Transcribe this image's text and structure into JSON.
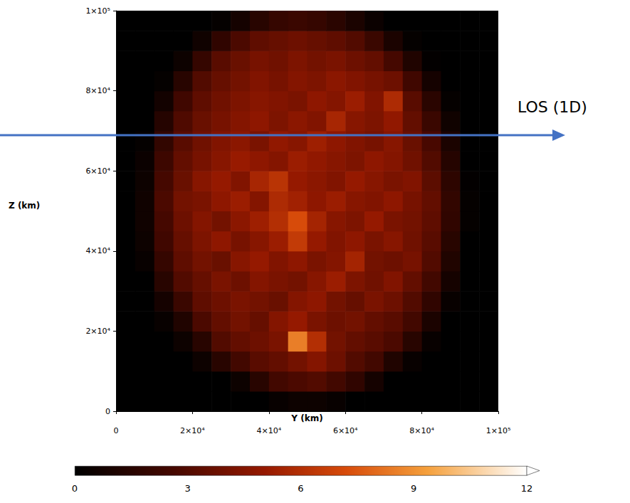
{
  "chart_data": {
    "type": "heatmap",
    "x_label": "Y (km)",
    "y_label": "Z (km)",
    "xlim": [
      0,
      100000
    ],
    "ylim": [
      0,
      100000
    ],
    "xticks": [
      0,
      {
        "value": 20000,
        "label": "2×10⁴"
      },
      {
        "value": 40000,
        "label": "4×10⁴"
      },
      {
        "value": 60000,
        "label": "6×10⁴"
      },
      {
        "value": 80000,
        "label": "8×10⁴"
      },
      {
        "value": 100000,
        "label": "1×10⁵"
      }
    ],
    "yticks": [
      0,
      {
        "value": 20000,
        "label": "2×10⁴"
      },
      {
        "value": 40000,
        "label": "4×10⁴"
      },
      {
        "value": 60000,
        "label": "6×10⁴"
      },
      {
        "value": 80000,
        "label": "8×10⁴"
      },
      {
        "value": 100000,
        "label": "1×10⁵"
      }
    ],
    "grid": false,
    "cells": {
      "x_bins": [
        0,
        5000,
        10000,
        15000,
        20000,
        25000,
        30000,
        35000,
        40000,
        45000,
        50000,
        55000,
        60000,
        65000,
        70000,
        75000,
        80000,
        85000,
        90000,
        95000,
        100000
      ],
      "y_bins": [
        0,
        5000,
        10000,
        15000,
        20000,
        25000,
        30000,
        35000,
        40000,
        45000,
        50000,
        55000,
        60000,
        65000,
        70000,
        75000,
        80000,
        85000,
        90000,
        95000,
        100000
      ],
      "values": [
        [
          0,
          0,
          0,
          0,
          0,
          0,
          0,
          0,
          0.3,
          0.5,
          0.5,
          0.3,
          0,
          0,
          0,
          0,
          0,
          0,
          0,
          0
        ],
        [
          0,
          0,
          0,
          0,
          0,
          0,
          0.5,
          1.5,
          2.5,
          2.8,
          3,
          2.5,
          1.8,
          0.8,
          0,
          0,
          0,
          0,
          0,
          0
        ],
        [
          0,
          0,
          0,
          0,
          0.5,
          1.5,
          2.5,
          3.2,
          3.5,
          4,
          4.5,
          3.8,
          3,
          2.5,
          1.2,
          0.3,
          0,
          0,
          0,
          0
        ],
        [
          0,
          0,
          0,
          0.5,
          1.5,
          3,
          3.5,
          3.8,
          4.2,
          8.5,
          6,
          4,
          3.5,
          3.2,
          2.8,
          1.5,
          0.3,
          0,
          0,
          0
        ],
        [
          0,
          0,
          0.3,
          1.2,
          2.8,
          3.5,
          4,
          3.6,
          4.5,
          5,
          4.2,
          3.8,
          4,
          3.5,
          3.2,
          2.5,
          1,
          0,
          0,
          0
        ],
        [
          0,
          0,
          0.8,
          2.2,
          3.4,
          3.8,
          4.2,
          4,
          3.7,
          4.5,
          4.8,
          4,
          3.6,
          4.2,
          3.8,
          3,
          1.8,
          0.3,
          0,
          0
        ],
        [
          0,
          0,
          1.5,
          3,
          3.6,
          4.2,
          3.8,
          4.5,
          4.2,
          4,
          4.6,
          5.2,
          4.3,
          3.9,
          4.4,
          3.5,
          2.5,
          0.8,
          0,
          0
        ],
        [
          0,
          0.3,
          2,
          3.4,
          4,
          3.7,
          4.6,
          5,
          4.4,
          4.8,
          4.2,
          4.5,
          5.5,
          4,
          3.8,
          4.1,
          3,
          1.2,
          0,
          0
        ],
        [
          0,
          0.5,
          2.4,
          3.6,
          4.3,
          4.8,
          4.1,
          4.6,
          5.2,
          6.5,
          5,
          4.4,
          4.8,
          4.2,
          4.6,
          3.9,
          3.2,
          1.5,
          0,
          0
        ],
        [
          0,
          0.6,
          2.6,
          3.8,
          4.5,
          4,
          4.7,
          5.3,
          6,
          7.2,
          5.5,
          4.6,
          4.3,
          5,
          4.2,
          4,
          3.4,
          1.8,
          0.2,
          0
        ],
        [
          0,
          0.6,
          2.8,
          4,
          4.2,
          4.8,
          5.2,
          4.5,
          5.8,
          5.4,
          4.8,
          5.2,
          4.6,
          4.4,
          4.8,
          4.1,
          3.5,
          1.9,
          0.2,
          0
        ],
        [
          0,
          0.5,
          2.6,
          3.7,
          4.6,
          5,
          4.4,
          5.6,
          6.2,
          5,
          4.7,
          4.4,
          5,
          4.6,
          4.2,
          4.4,
          3.3,
          1.7,
          0.1,
          0
        ],
        [
          0,
          0.4,
          2.3,
          3.5,
          4.1,
          4.6,
          5.1,
          4.8,
          4.5,
          5.2,
          4.9,
          4.6,
          4.3,
          4.8,
          4.5,
          3.9,
          3,
          1.4,
          0,
          0
        ],
        [
          0,
          0.2,
          1.9,
          3.2,
          3.9,
          4.4,
          4.7,
          4.2,
          4.9,
          4.6,
          5.3,
          4.8,
          4.4,
          4.1,
          4.6,
          3.7,
          2.7,
          1,
          0,
          0
        ],
        [
          0,
          0,
          1.4,
          2.9,
          3.7,
          4.1,
          4.5,
          4.8,
          4.3,
          4.7,
          4.4,
          5.6,
          4.6,
          4.3,
          4.9,
          3.5,
          2.2,
          0.6,
          0,
          0
        ],
        [
          0,
          0,
          0.7,
          2.4,
          3.4,
          3.9,
          4.3,
          4.6,
          4.4,
          4.2,
          4.8,
          4.5,
          5.2,
          4.4,
          5.8,
          3.2,
          1.6,
          0.2,
          0,
          0
        ],
        [
          0,
          0,
          0.2,
          1.5,
          3,
          3.6,
          4,
          4.4,
          4.1,
          4.5,
          4.3,
          4.7,
          4.4,
          4.1,
          3.8,
          2.4,
          0.8,
          0,
          0,
          0
        ],
        [
          0,
          0,
          0,
          0.5,
          2,
          3.2,
          3.7,
          4.1,
          3.9,
          4.3,
          4,
          4.2,
          3.8,
          3.5,
          2.6,
          1.2,
          0.1,
          0,
          0,
          0
        ],
        [
          0,
          0,
          0,
          0,
          0.6,
          1.8,
          2.8,
          3.4,
          3.6,
          3.8,
          3.6,
          3.4,
          3,
          2.2,
          1,
          0.2,
          0,
          0,
          0,
          0
        ],
        [
          0,
          0,
          0,
          0,
          0,
          0.2,
          0.8,
          1.5,
          2,
          2.2,
          2,
          1.6,
          1,
          0.4,
          0,
          0,
          0,
          0,
          0,
          0
        ]
      ]
    },
    "colorbar": {
      "range": [
        0,
        12
      ],
      "ticks": [
        0,
        3,
        6,
        9,
        12
      ]
    },
    "annotations": [
      {
        "text": "LOS (1D)"
      }
    ]
  }
}
